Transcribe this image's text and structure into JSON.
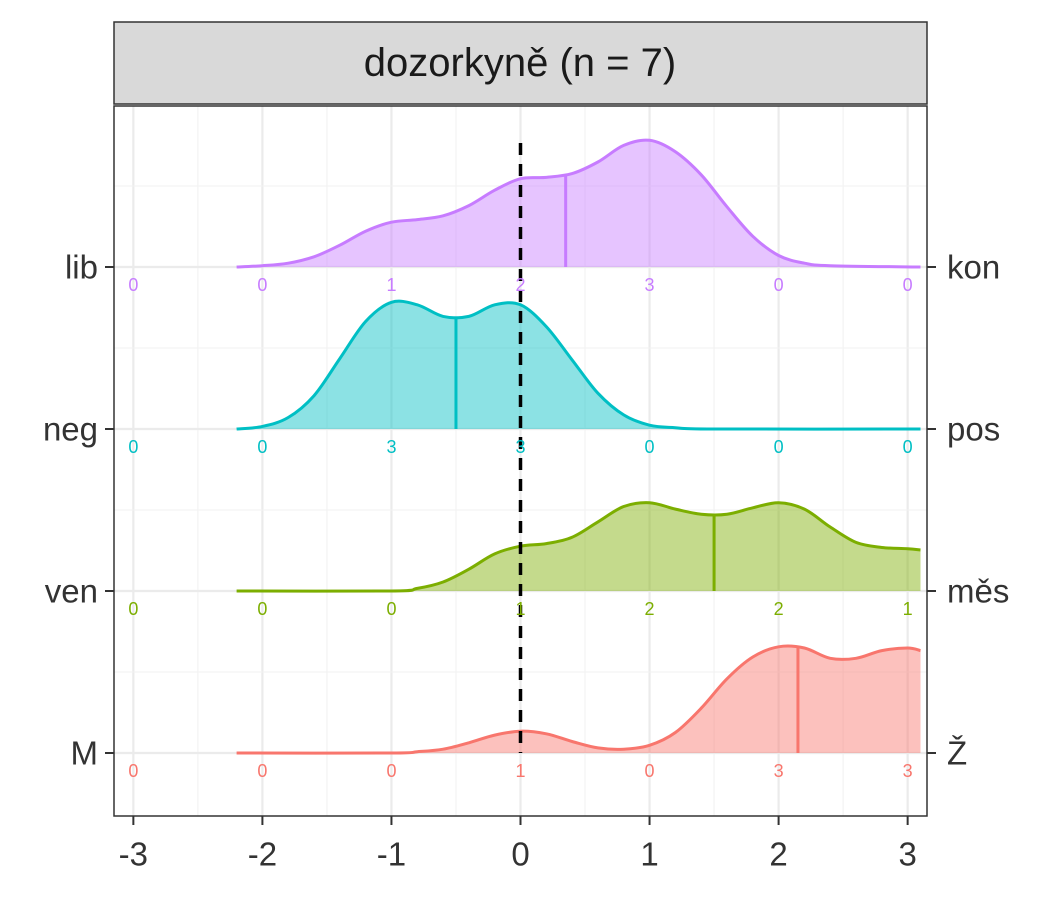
{
  "chart_data": {
    "type": "ridgeline",
    "facet_title": "dozorkyně (n = 7)",
    "x_ticks": [
      "-3",
      "-2",
      "-1",
      "0",
      "1",
      "2",
      "3"
    ],
    "xlim": [
      -3.15,
      3.15
    ],
    "grid": true,
    "reference_line_x": 0,
    "series": [
      {
        "left_label": "lib",
        "right_label": "kon",
        "color": "#C77CFF",
        "mean": 0.35,
        "counts": [
          0,
          0,
          1,
          2,
          3,
          0,
          0
        ],
        "density": [
          [
            -2.2,
            0
          ],
          [
            -2.0,
            0.01
          ],
          [
            -1.8,
            0.03
          ],
          [
            -1.6,
            0.08
          ],
          [
            -1.4,
            0.17
          ],
          [
            -1.2,
            0.28
          ],
          [
            -1.0,
            0.35
          ],
          [
            -0.8,
            0.37
          ],
          [
            -0.6,
            0.4
          ],
          [
            -0.4,
            0.48
          ],
          [
            -0.2,
            0.6
          ],
          [
            0.0,
            0.69
          ],
          [
            0.2,
            0.7
          ],
          [
            0.4,
            0.73
          ],
          [
            0.6,
            0.82
          ],
          [
            0.8,
            0.95
          ],
          [
            1.0,
            0.99
          ],
          [
            1.2,
            0.9
          ],
          [
            1.4,
            0.72
          ],
          [
            1.6,
            0.47
          ],
          [
            1.8,
            0.24
          ],
          [
            2.0,
            0.09
          ],
          [
            2.2,
            0.03
          ],
          [
            2.4,
            0.01
          ],
          [
            3.1,
            0
          ]
        ]
      },
      {
        "left_label": "neg",
        "right_label": "pos",
        "color": "#00BFC4",
        "mean": -0.5,
        "counts": [
          0,
          0,
          3,
          3,
          0,
          0,
          0
        ],
        "density": [
          [
            -2.2,
            0
          ],
          [
            -2.0,
            0.02
          ],
          [
            -1.8,
            0.09
          ],
          [
            -1.6,
            0.26
          ],
          [
            -1.4,
            0.55
          ],
          [
            -1.2,
            0.84
          ],
          [
            -1.0,
            0.99
          ],
          [
            -0.8,
            0.97
          ],
          [
            -0.6,
            0.88
          ],
          [
            -0.4,
            0.88
          ],
          [
            -0.2,
            0.97
          ],
          [
            0.0,
            0.97
          ],
          [
            0.2,
            0.8
          ],
          [
            0.4,
            0.54
          ],
          [
            0.6,
            0.28
          ],
          [
            0.8,
            0.11
          ],
          [
            1.0,
            0.03
          ],
          [
            1.2,
            0.01
          ],
          [
            1.5,
            0
          ],
          [
            3.1,
            0
          ]
        ]
      },
      {
        "left_label": "ven",
        "right_label": "měs",
        "color": "#7CAE00",
        "mean": 1.5,
        "counts": [
          0,
          0,
          0,
          1,
          2,
          2,
          1
        ],
        "density": [
          [
            -2.2,
            0
          ],
          [
            -1.0,
            0
          ],
          [
            -0.8,
            0.02
          ],
          [
            -0.6,
            0.07
          ],
          [
            -0.4,
            0.17
          ],
          [
            -0.2,
            0.29
          ],
          [
            0.0,
            0.35
          ],
          [
            0.2,
            0.37
          ],
          [
            0.4,
            0.42
          ],
          [
            0.6,
            0.54
          ],
          [
            0.8,
            0.66
          ],
          [
            1.0,
            0.69
          ],
          [
            1.2,
            0.64
          ],
          [
            1.4,
            0.6
          ],
          [
            1.6,
            0.6
          ],
          [
            1.8,
            0.65
          ],
          [
            2.0,
            0.69
          ],
          [
            2.2,
            0.64
          ],
          [
            2.4,
            0.5
          ],
          [
            2.6,
            0.38
          ],
          [
            2.8,
            0.34
          ],
          [
            3.0,
            0.33
          ],
          [
            3.1,
            0.32
          ]
        ]
      },
      {
        "left_label": "M",
        "right_label": "Ž",
        "color": "#F8766D",
        "mean": 2.15,
        "counts": [
          0,
          0,
          0,
          1,
          0,
          3,
          3
        ],
        "density": [
          [
            -2.2,
            0
          ],
          [
            -1.0,
            0
          ],
          [
            -0.8,
            0.01
          ],
          [
            -0.6,
            0.03
          ],
          [
            -0.4,
            0.08
          ],
          [
            -0.2,
            0.14
          ],
          [
            0.0,
            0.17
          ],
          [
            0.2,
            0.15
          ],
          [
            0.4,
            0.09
          ],
          [
            0.6,
            0.04
          ],
          [
            0.8,
            0.03
          ],
          [
            1.0,
            0.06
          ],
          [
            1.2,
            0.16
          ],
          [
            1.4,
            0.35
          ],
          [
            1.6,
            0.58
          ],
          [
            1.8,
            0.75
          ],
          [
            2.0,
            0.83
          ],
          [
            2.2,
            0.82
          ],
          [
            2.4,
            0.74
          ],
          [
            2.6,
            0.74
          ],
          [
            2.8,
            0.8
          ],
          [
            3.0,
            0.82
          ],
          [
            3.1,
            0.8
          ]
        ]
      }
    ]
  }
}
